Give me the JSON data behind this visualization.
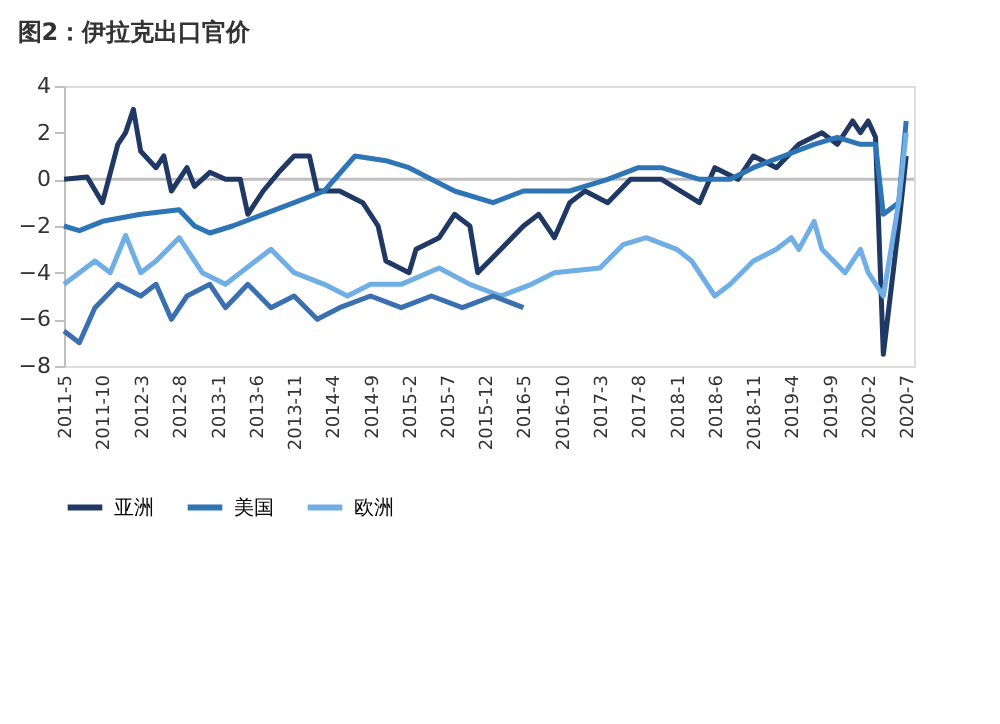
{
  "chart_data": {
    "type": "line",
    "title": "图2：伊拉克出口官价",
    "ylim": [
      -8,
      4
    ],
    "yticks": [
      -8,
      -6,
      -4,
      -2,
      0,
      2,
      4
    ],
    "xlim": [
      "2011-05",
      "2020-08"
    ],
    "xticks": [
      {
        "value": "2011-05",
        "label": "2011-5"
      },
      {
        "value": "2011-10",
        "label": "2011-10"
      },
      {
        "value": "2012-03",
        "label": "2012-3"
      },
      {
        "value": "2012-08",
        "label": "2012-8"
      },
      {
        "value": "2013-01",
        "label": "2013-1"
      },
      {
        "value": "2013-06",
        "label": "2013-6"
      },
      {
        "value": "2013-11",
        "label": "2013-11"
      },
      {
        "value": "2014-04",
        "label": "2014-4"
      },
      {
        "value": "2014-09",
        "label": "2014-9"
      },
      {
        "value": "2015-02",
        "label": "2015-2"
      },
      {
        "value": "2015-07",
        "label": "2015-7"
      },
      {
        "value": "2015-12",
        "label": "2015-12"
      },
      {
        "value": "2016-05",
        "label": "2016-5"
      },
      {
        "value": "2016-10",
        "label": "2016-10"
      },
      {
        "value": "2017-03",
        "label": "2017-3"
      },
      {
        "value": "2017-08",
        "label": "2017-8"
      },
      {
        "value": "2018-01",
        "label": "2018-1"
      },
      {
        "value": "2018-06",
        "label": "2018-6"
      },
      {
        "value": "2018-11",
        "label": "2018-11"
      },
      {
        "value": "2019-04",
        "label": "2019-4"
      },
      {
        "value": "2019-09",
        "label": "2019-9"
      },
      {
        "value": "2020-02",
        "label": "2020-2"
      },
      {
        "value": "2020-07",
        "label": "2020-7"
      }
    ],
    "grid": false,
    "legend": "bottom",
    "line_style": "solid",
    "ref_lines": [
      {
        "axis": "y",
        "value": 0,
        "color": "#bfbfbf"
      }
    ],
    "series": [
      {
        "name": "亚洲",
        "color": "#1f3864",
        "x": [
          "2011-05",
          "2011-08",
          "2011-10",
          "2011-12",
          "2012-01",
          "2012-02",
          "2012-03",
          "2012-05",
          "2012-06",
          "2012-07",
          "2012-09",
          "2012-10",
          "2012-12",
          "2013-02",
          "2013-04",
          "2013-05",
          "2013-07",
          "2013-09",
          "2013-11",
          "2014-01",
          "2014-02",
          "2014-05",
          "2014-08",
          "2014-10",
          "2014-11",
          "2015-02",
          "2015-03",
          "2015-06",
          "2015-08",
          "2015-10",
          "2015-11",
          "2016-02",
          "2016-05",
          "2016-07",
          "2016-09",
          "2016-11",
          "2017-01",
          "2017-04",
          "2017-07",
          "2017-11",
          "2018-04",
          "2018-06",
          "2018-09",
          "2018-11",
          "2019-02",
          "2019-05",
          "2019-08",
          "2019-10",
          "2019-12",
          "2020-01",
          "2020-02",
          "2020-03",
          "2020-04",
          "2020-06",
          "2020-07"
        ],
        "values": [
          0,
          0.1,
          -1,
          1.5,
          2,
          3,
          1.2,
          0.5,
          1,
          -0.5,
          0.5,
          -0.3,
          0.3,
          0,
          0,
          -1.5,
          -0.5,
          0.3,
          1,
          1,
          -0.5,
          -0.5,
          -1,
          -2,
          -3.5,
          -4,
          -3,
          -2.5,
          -1.5,
          -2,
          -4,
          -3,
          -2,
          -1.5,
          -2.5,
          -1,
          -0.5,
          -1,
          0,
          0,
          -1,
          0.5,
          0,
          1,
          0.5,
          1.5,
          2,
          1.5,
          2.5,
          2,
          2.5,
          1.8,
          -7.5,
          -2,
          1
        ]
      },
      {
        "name": "美国",
        "color": "#2e75b6",
        "x": [
          "2011-05",
          "2011-07",
          "2011-10",
          "2012-03",
          "2012-08",
          "2012-10",
          "2012-12",
          "2013-03",
          "2013-07",
          "2013-11",
          "2014-03",
          "2014-07",
          "2014-11",
          "2015-02",
          "2015-05",
          "2015-08",
          "2016-01",
          "2016-05",
          "2016-11",
          "2017-04",
          "2017-08",
          "2017-11",
          "2018-04",
          "2018-08",
          "2018-11",
          "2019-03",
          "2019-07",
          "2019-10",
          "2020-01",
          "2020-03",
          "2020-04",
          "2020-06",
          "2020-07"
        ],
        "values": [
          -2,
          -2.2,
          -1.8,
          -1.5,
          -1.3,
          -2,
          -2.3,
          -2,
          -1.5,
          -1,
          -0.5,
          1,
          0.8,
          0.5,
          0,
          -0.5,
          -1,
          -0.5,
          -0.5,
          0,
          0.5,
          0.5,
          0,
          0,
          0.5,
          1,
          1.5,
          1.8,
          1.5,
          1.5,
          -1.5,
          -1,
          2.5
        ]
      },
      {
        "name": "欧洲",
        "color": "#70aee6",
        "x": [
          "2011-05",
          "2011-07",
          "2011-09",
          "2011-11",
          "2012-01",
          "2012-03",
          "2012-05",
          "2012-08",
          "2012-11",
          "2013-02",
          "2013-06",
          "2013-08",
          "2013-11",
          "2014-03",
          "2014-06",
          "2014-09",
          "2015-01",
          "2015-06",
          "2015-10",
          "2016-02",
          "2016-06",
          "2016-09",
          "2017-03",
          "2017-06",
          "2017-09",
          "2018-01",
          "2018-03",
          "2018-06",
          "2018-08",
          "2018-11",
          "2019-02",
          "2019-04",
          "2019-05",
          "2019-07",
          "2019-08",
          "2019-11",
          "2020-01",
          "2020-02",
          "2020-04",
          "2020-06",
          "2020-07"
        ],
        "values": [
          -4.5,
          -4,
          -3.5,
          -4,
          -2.4,
          -4,
          -3.5,
          -2.5,
          -4,
          -4.5,
          -3.5,
          -3,
          -4,
          -4.5,
          -5,
          -4.5,
          -4.5,
          -3.8,
          -4.5,
          -5,
          -4.5,
          -4,
          -3.8,
          -2.8,
          -2.5,
          -3,
          -3.5,
          -5,
          -4.5,
          -3.5,
          -3,
          -2.5,
          -3,
          -1.8,
          -3,
          -4,
          -3,
          -4,
          -5,
          -1,
          2
        ]
      },
      {
        "color": "#3a6fb0",
        "x": [
          "2011-05",
          "2011-07",
          "2011-09",
          "2011-12",
          "2012-03",
          "2012-05",
          "2012-07",
          "2012-09",
          "2012-12",
          "2013-02",
          "2013-05",
          "2013-08",
          "2013-11",
          "2014-02",
          "2014-05",
          "2014-09",
          "2015-01",
          "2015-05",
          "2015-09",
          "2016-01",
          "2016-05"
        ],
        "values": [
          -6.5,
          -7,
          -5.5,
          -4.5,
          -5,
          -4.5,
          -6,
          -5,
          -4.5,
          -5.5,
          -4.5,
          -5.5,
          -5,
          -6,
          -5.5,
          -5,
          -5.5,
          -5,
          -5.5,
          -5,
          -5.5
        ]
      }
    ]
  }
}
